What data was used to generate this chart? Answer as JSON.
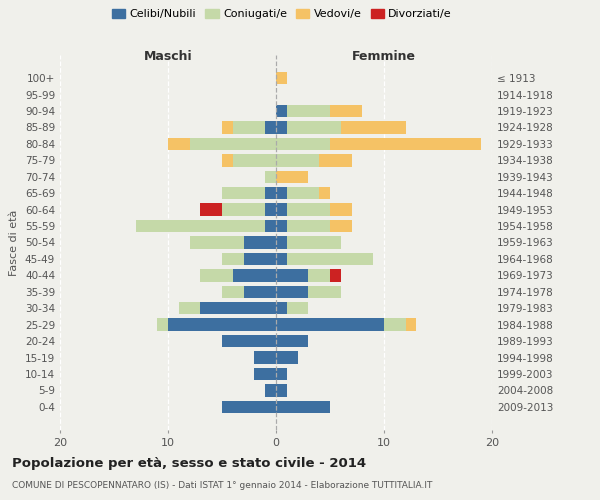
{
  "age_groups": [
    "100+",
    "95-99",
    "90-94",
    "85-89",
    "80-84",
    "75-79",
    "70-74",
    "65-69",
    "60-64",
    "55-59",
    "50-54",
    "45-49",
    "40-44",
    "35-39",
    "30-34",
    "25-29",
    "20-24",
    "15-19",
    "10-14",
    "5-9",
    "0-4"
  ],
  "year_labels": [
    "≤ 1913",
    "1914-1918",
    "1919-1923",
    "1924-1928",
    "1929-1933",
    "1934-1938",
    "1939-1943",
    "1944-1948",
    "1949-1953",
    "1954-1958",
    "1959-1963",
    "1964-1968",
    "1969-1973",
    "1974-1978",
    "1979-1983",
    "1984-1988",
    "1989-1993",
    "1994-1998",
    "1999-2003",
    "2004-2008",
    "2009-2013"
  ],
  "males": {
    "celibe": [
      0,
      0,
      0,
      1,
      0,
      0,
      0,
      1,
      1,
      1,
      3,
      3,
      4,
      3,
      7,
      10,
      5,
      2,
      2,
      1,
      5
    ],
    "coniugato": [
      0,
      0,
      0,
      3,
      8,
      4,
      1,
      4,
      4,
      12,
      5,
      2,
      3,
      2,
      2,
      1,
      0,
      0,
      0,
      0,
      0
    ],
    "vedovo": [
      0,
      0,
      0,
      1,
      2,
      1,
      0,
      0,
      0,
      0,
      0,
      0,
      0,
      0,
      0,
      0,
      0,
      0,
      0,
      0,
      0
    ],
    "divorziato": [
      0,
      0,
      0,
      0,
      0,
      0,
      0,
      0,
      2,
      0,
      0,
      0,
      0,
      0,
      0,
      0,
      0,
      0,
      0,
      0,
      0
    ]
  },
  "females": {
    "nubile": [
      0,
      0,
      1,
      1,
      0,
      0,
      0,
      1,
      1,
      1,
      1,
      1,
      3,
      3,
      1,
      10,
      3,
      2,
      1,
      1,
      5
    ],
    "coniugata": [
      0,
      0,
      4,
      5,
      5,
      4,
      0,
      3,
      4,
      4,
      5,
      8,
      2,
      3,
      2,
      2,
      0,
      0,
      0,
      0,
      0
    ],
    "vedova": [
      1,
      0,
      3,
      6,
      14,
      3,
      3,
      1,
      2,
      2,
      0,
      0,
      0,
      0,
      0,
      1,
      0,
      0,
      0,
      0,
      0
    ],
    "divorziata": [
      0,
      0,
      0,
      0,
      0,
      0,
      0,
      0,
      0,
      0,
      0,
      0,
      1,
      0,
      0,
      0,
      0,
      0,
      0,
      0,
      0
    ]
  },
  "color_celibe": "#3d6fa0",
  "color_coniugato": "#c5d9a8",
  "color_vedovo": "#f5c265",
  "color_divorziato": "#cc2222",
  "xlim": 20,
  "title": "Popolazione per età, sesso e stato civile - 2014",
  "subtitle": "COMUNE DI PESCOPENNATARO (IS) - Dati ISTAT 1° gennaio 2014 - Elaborazione TUTTITALIA.IT",
  "ylabel_left": "Fasce di età",
  "label_maschi": "Maschi",
  "label_femmine": "Femmine",
  "legend_celibe": "Celibi/Nubili",
  "legend_coniugato": "Coniugati/e",
  "legend_vedovo": "Vedovi/e",
  "legend_divorziato": "Divorziati/e",
  "bg_color": "#f0f0eb"
}
